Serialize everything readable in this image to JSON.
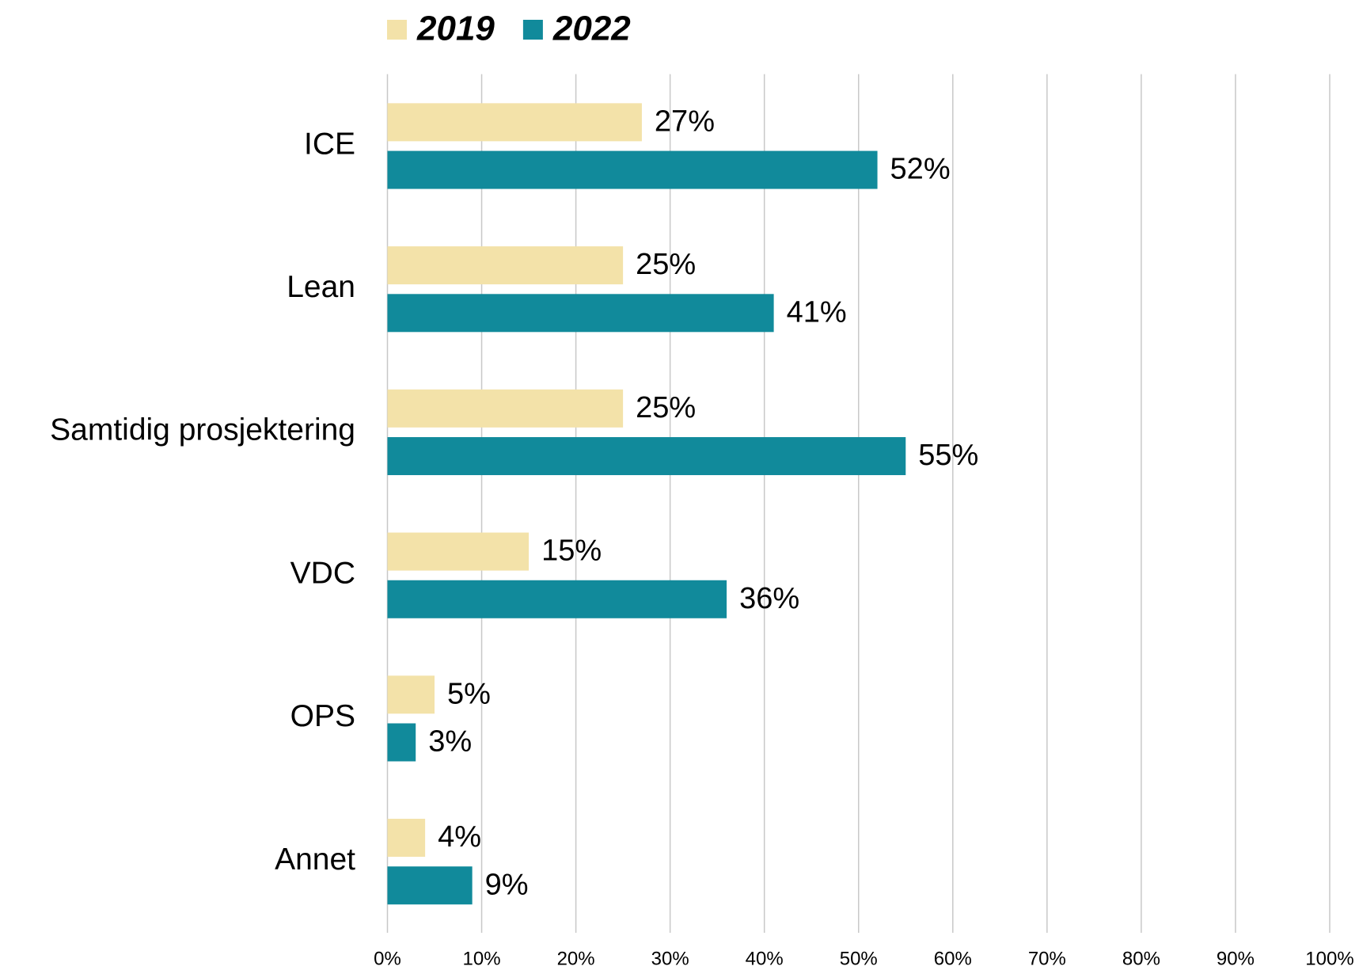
{
  "chart_data": {
    "type": "bar",
    "orientation": "horizontal",
    "categories": [
      "ICE",
      "Lean",
      "Samtidig prosjektering",
      "VDC",
      "OPS",
      "Annet"
    ],
    "series": [
      {
        "name": "2019",
        "color": "#f3e2a9",
        "values": [
          27,
          25,
          25,
          15,
          5,
          4
        ],
        "value_labels": [
          "27%",
          "25%",
          "25%",
          "15%",
          "5%",
          "4%"
        ]
      },
      {
        "name": "2022",
        "color": "#118a9b",
        "values": [
          52,
          41,
          55,
          36,
          3,
          9
        ],
        "value_labels": [
          "52%",
          "41%",
          "55%",
          "36%",
          "3%",
          "9%"
        ]
      }
    ],
    "xlim": [
      0,
      100
    ],
    "xticks": [
      {
        "value": 0,
        "label": "0%"
      },
      {
        "value": 10,
        "label": "10%"
      },
      {
        "value": 20,
        "label": "20%"
      },
      {
        "value": 30,
        "label": "30%"
      },
      {
        "value": 40,
        "label": "40%"
      },
      {
        "value": 50,
        "label": "50%"
      },
      {
        "value": 60,
        "label": "60%"
      },
      {
        "value": 70,
        "label": "70%"
      },
      {
        "value": 80,
        "label": "80%"
      },
      {
        "value": 90,
        "label": "90%"
      },
      {
        "value": 100,
        "label": "100%"
      }
    ],
    "grid": true,
    "legend": "top"
  }
}
